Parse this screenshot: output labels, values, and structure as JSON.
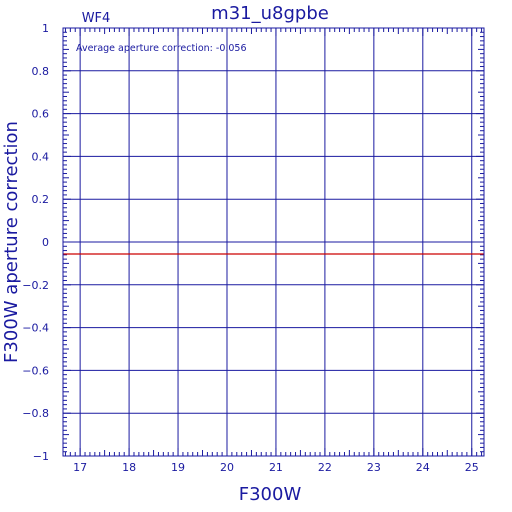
{
  "chart_data": {
    "type": "line",
    "title": "m31_u8gpbe",
    "subtitle": "WF4",
    "annotation": "Average aperture correction: -0.056",
    "xlabel": "F300W",
    "ylabel": "F300W aperture correction",
    "xlim": [
      16.65,
      25.25
    ],
    "ylim": [
      -1,
      1
    ],
    "x_ticks": [
      "17",
      "18",
      "19",
      "20",
      "21",
      "22",
      "23",
      "24",
      "25"
    ],
    "y_ticks": [
      "1",
      "0.8",
      "0.6",
      "0.4",
      "0.2",
      "0",
      "-0.2",
      "-0.4",
      "-0.6",
      "-0.8",
      "-1"
    ],
    "grid": true,
    "series": [
      {
        "x": [
          16.65,
          25.25
        ],
        "y": [
          -0.056,
          -0.056
        ],
        "color": "#cc0000"
      }
    ],
    "frame_color": "#1a1aa0"
  }
}
